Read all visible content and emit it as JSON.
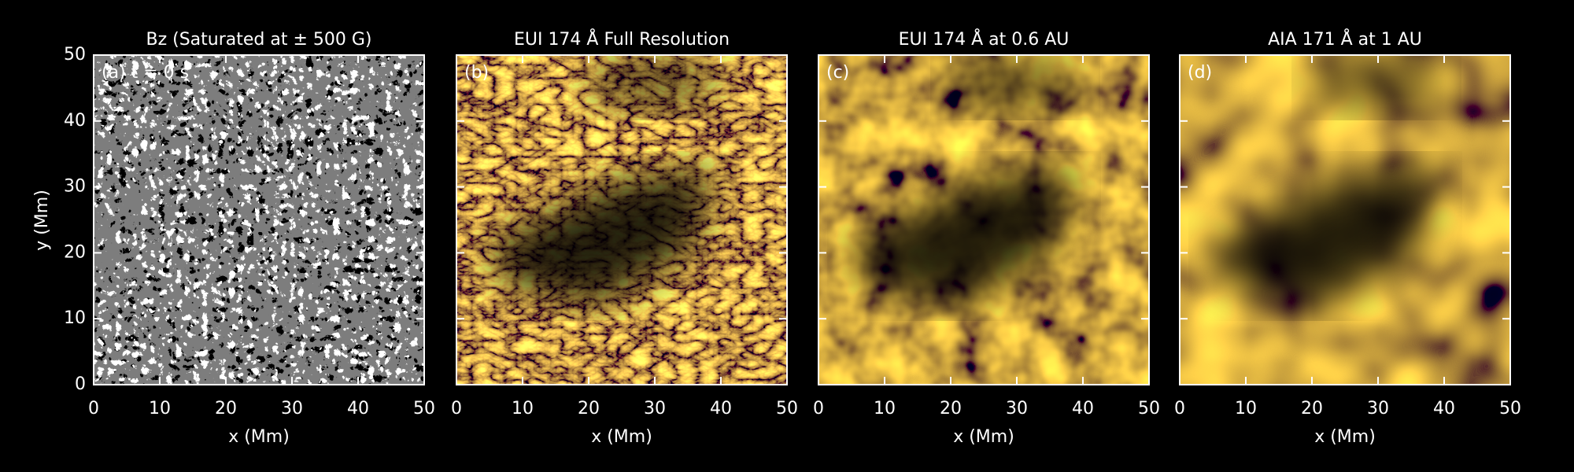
{
  "chart_data": [
    {
      "type": "image",
      "title": "Bz (Saturated at ± 500 G)",
      "label": "(a) t = 0 s",
      "colormap": "gray",
      "xlabel": "x (Mm)",
      "ylabel": "y (Mm)",
      "xlim": [
        0,
        50
      ],
      "xticks": [
        0,
        10,
        20,
        30,
        40,
        50
      ],
      "ylim": [
        0,
        50
      ],
      "yticks": [
        0,
        10,
        20,
        30,
        40,
        50
      ],
      "ytick_labels": true
    },
    {
      "type": "image",
      "title": "EUI 174 Å Full Resolution",
      "label": "(b)",
      "colormap": "gold-fine",
      "xlabel": "x (Mm)",
      "xlim": [
        0,
        50
      ],
      "xticks": [
        0,
        10,
        20,
        30,
        40,
        50
      ],
      "ylim": [
        0,
        50
      ],
      "yticks": [
        0,
        10,
        20,
        30,
        40,
        50
      ],
      "ytick_labels": false
    },
    {
      "type": "image",
      "title": "EUI 174 Å at 0.6 AU",
      "label": "(c)",
      "colormap": "gold-medium",
      "xlabel": "x (Mm)",
      "xlim": [
        0,
        50
      ],
      "xticks": [
        0,
        10,
        20,
        30,
        40,
        50
      ],
      "ylim": [
        0,
        50
      ],
      "yticks": [
        0,
        10,
        20,
        30,
        40,
        50
      ],
      "ytick_labels": false
    },
    {
      "type": "image",
      "title": "AIA 171 Å at 1 AU",
      "label": "(d)",
      "colormap": "gold-smooth",
      "xlabel": "x (Mm)",
      "xlim": [
        0,
        50
      ],
      "xticks": [
        0,
        10,
        20,
        30,
        40,
        50
      ],
      "ylim": [
        0,
        50
      ],
      "yticks": [
        0,
        10,
        20,
        30,
        40,
        50
      ],
      "ytick_labels": false
    }
  ]
}
